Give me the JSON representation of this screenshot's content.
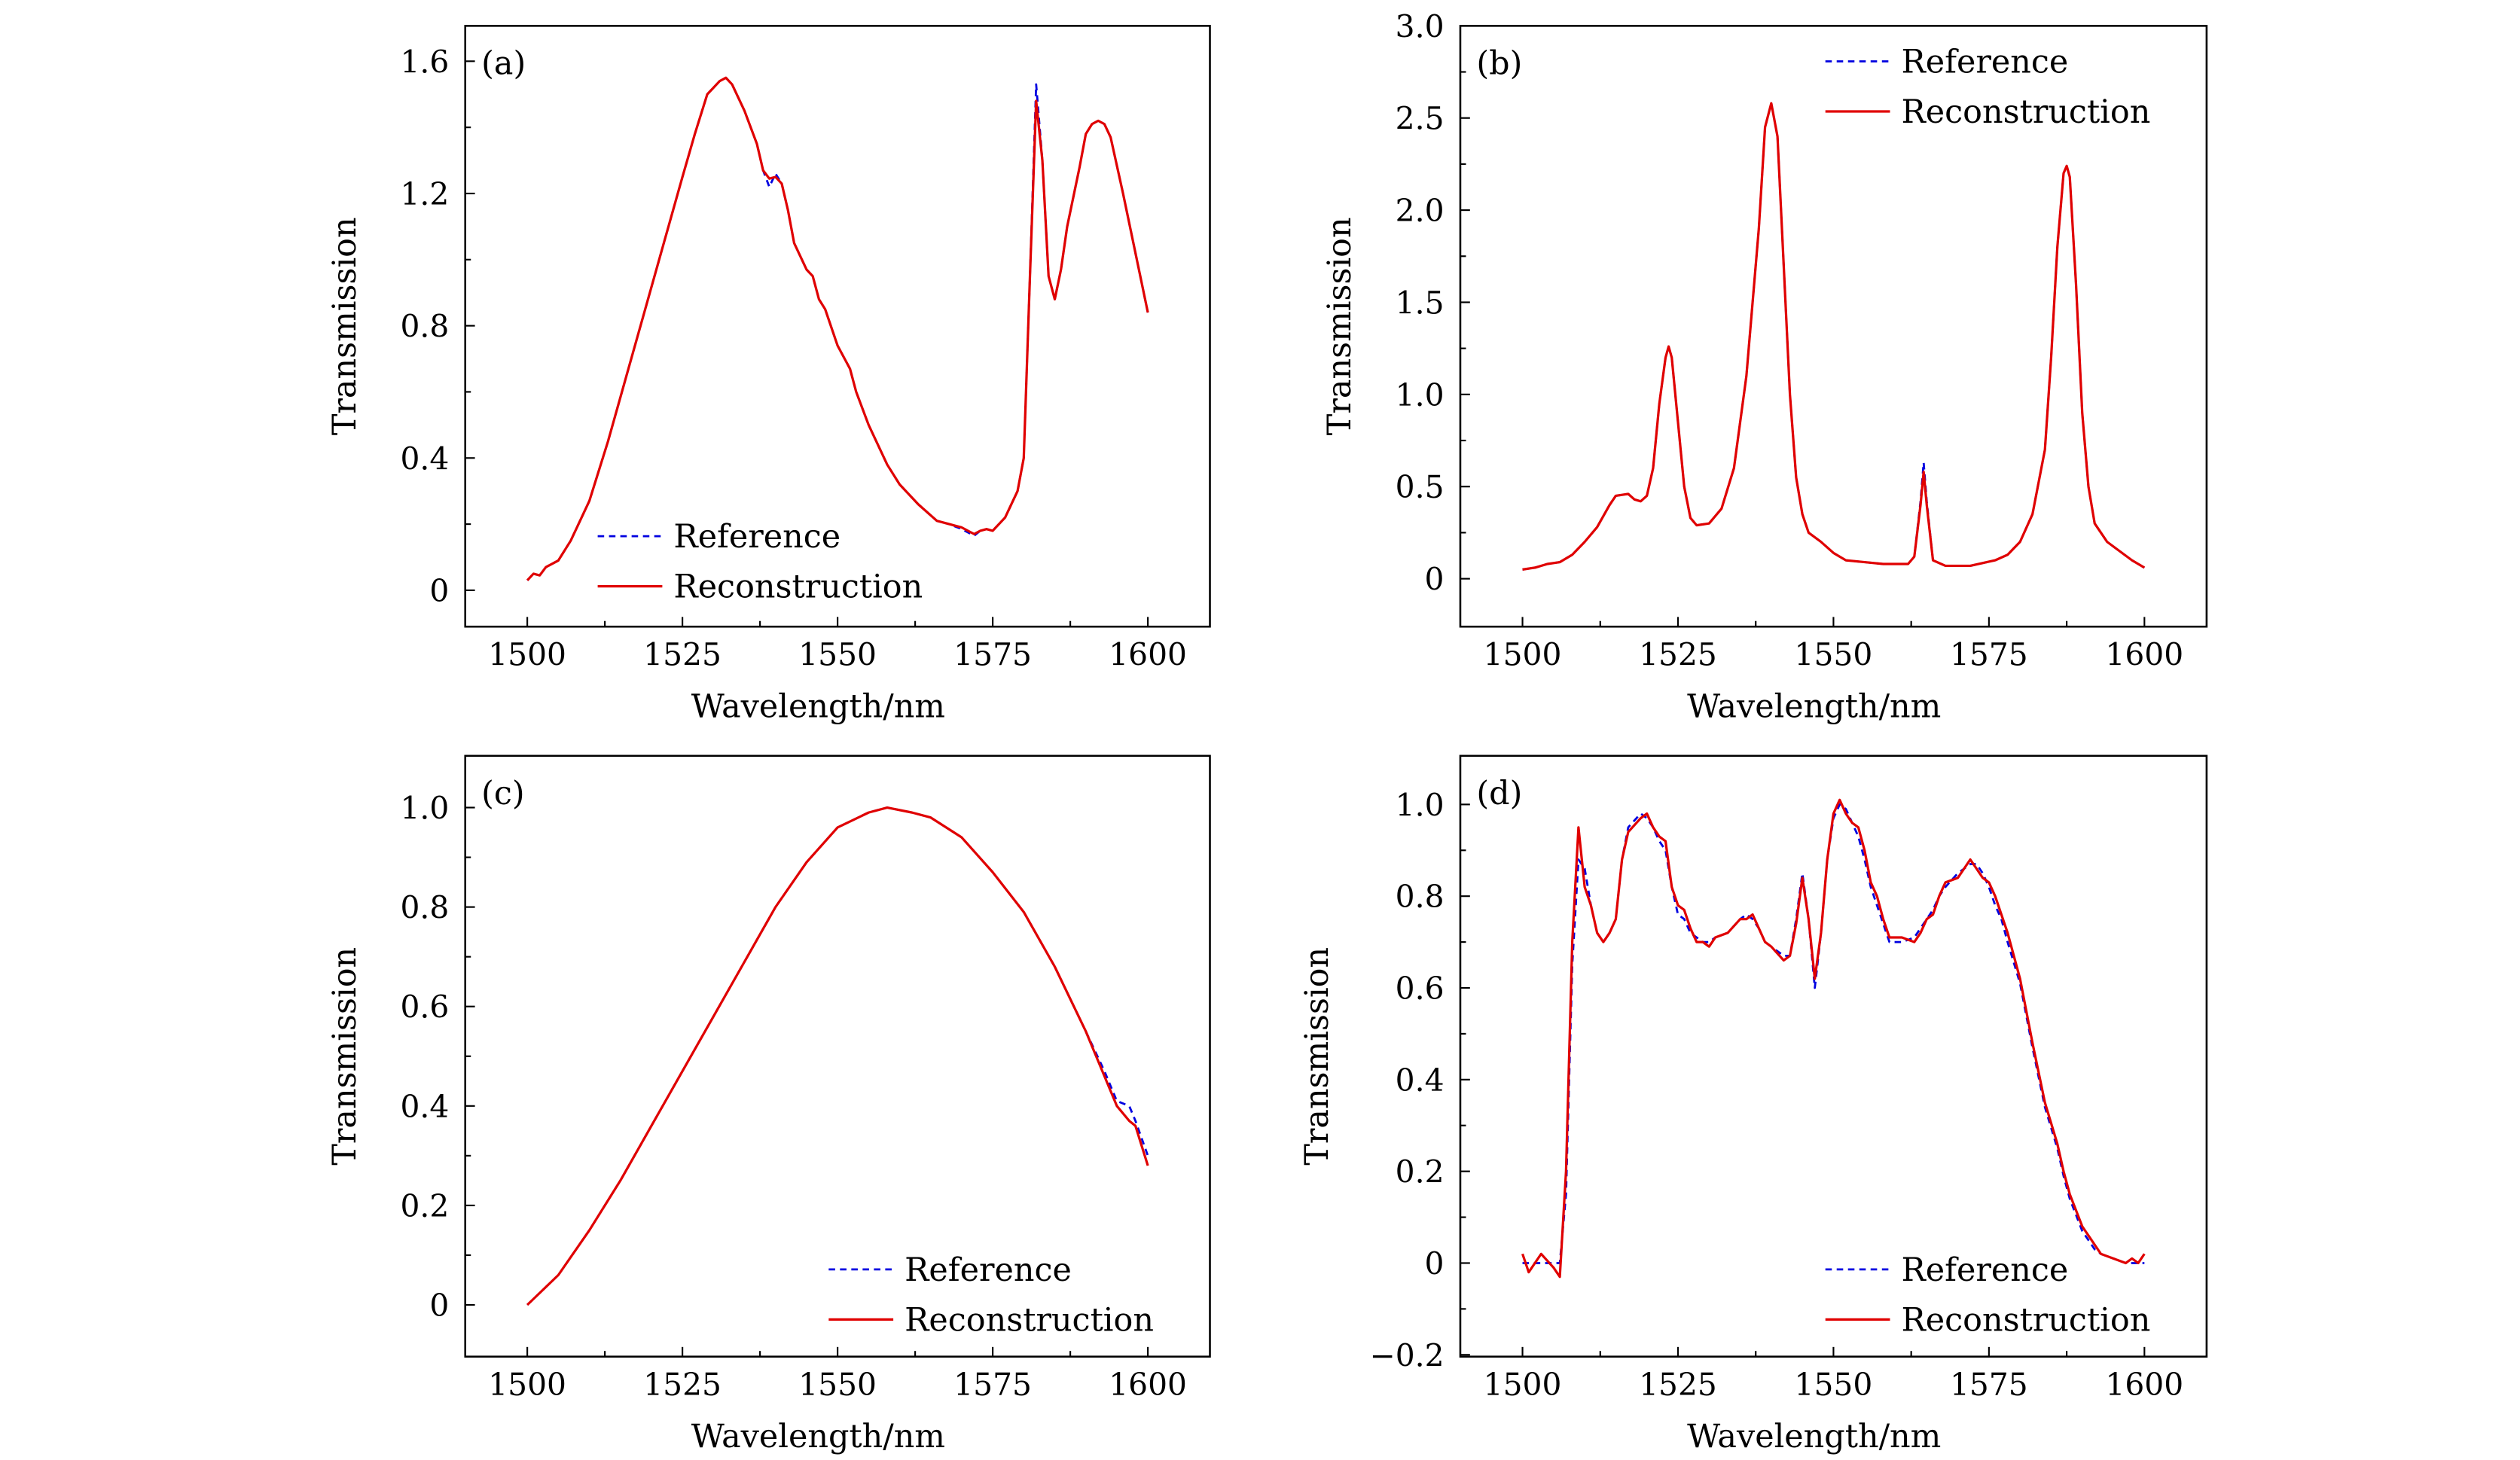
{
  "colors": {
    "reference": "#0000e0",
    "reconstruction": "#e00000",
    "axes": "#000000"
  },
  "chart_data": [
    {
      "type": "line",
      "panel_label": "(a)",
      "xlabel": "Wavelength/nm",
      "ylabel": "Transmission",
      "xlim": [
        1490,
        1610
      ],
      "ylim": [
        -0.11,
        1.707
      ],
      "xticks": [
        1500,
        1525,
        1550,
        1575,
        1600
      ],
      "xtick_labels": [
        "1500",
        "1525",
        "1550",
        "1575",
        "1600"
      ],
      "yticks": [
        0,
        0.4,
        0.8,
        1.2,
        1.6
      ],
      "ytick_labels": [
        "0",
        "0.4",
        "0.8",
        "1.2",
        "1.6"
      ],
      "yminor": 0.2,
      "legend": {
        "placement": "bottom-left",
        "entries": [
          "Reference",
          "Reconstruction"
        ]
      },
      "x": [
        1500,
        1501,
        1502,
        1503,
        1505,
        1507,
        1510,
        1513,
        1516,
        1519,
        1522,
        1525,
        1527,
        1529,
        1530,
        1531,
        1532,
        1533,
        1535,
        1537,
        1538,
        1539,
        1540,
        1541,
        1542,
        1543,
        1545,
        1546,
        1547,
        1548,
        1550,
        1552,
        1553,
        1555,
        1558,
        1560,
        1563,
        1566,
        1568,
        1570,
        1572,
        1573,
        1574,
        1575,
        1577,
        1579,
        1580,
        1581,
        1582,
        1583,
        1584,
        1585,
        1586,
        1587,
        1589,
        1590,
        1591,
        1592,
        1593,
        1594,
        1596,
        1598,
        1600
      ],
      "series": [
        {
          "name": "Reference",
          "values": [
            0.03,
            0.05,
            0.045,
            0.07,
            0.09,
            0.15,
            0.27,
            0.45,
            0.65,
            0.85,
            1.05,
            1.25,
            1.38,
            1.5,
            1.52,
            1.54,
            1.55,
            1.53,
            1.45,
            1.35,
            1.27,
            1.22,
            1.26,
            1.23,
            1.15,
            1.05,
            0.97,
            0.95,
            0.88,
            0.85,
            0.74,
            0.67,
            0.6,
            0.5,
            0.38,
            0.32,
            0.26,
            0.21,
            0.2,
            0.185,
            0.165,
            0.18,
            0.185,
            0.18,
            0.22,
            0.3,
            0.4,
            0.95,
            1.53,
            1.3,
            0.95,
            0.88,
            0.97,
            1.1,
            1.28,
            1.38,
            1.41,
            1.42,
            1.41,
            1.37,
            1.2,
            1.02,
            0.84
          ]
        },
        {
          "name": "Reconstruction",
          "values": [
            0.03,
            0.05,
            0.045,
            0.07,
            0.09,
            0.15,
            0.27,
            0.45,
            0.65,
            0.85,
            1.05,
            1.25,
            1.38,
            1.5,
            1.52,
            1.54,
            1.55,
            1.53,
            1.45,
            1.35,
            1.27,
            1.245,
            1.25,
            1.23,
            1.15,
            1.05,
            0.97,
            0.95,
            0.88,
            0.85,
            0.74,
            0.67,
            0.6,
            0.5,
            0.38,
            0.32,
            0.26,
            0.21,
            0.2,
            0.19,
            0.17,
            0.18,
            0.185,
            0.18,
            0.22,
            0.3,
            0.4,
            0.95,
            1.48,
            1.3,
            0.95,
            0.88,
            0.97,
            1.1,
            1.28,
            1.38,
            1.41,
            1.42,
            1.41,
            1.37,
            1.2,
            1.02,
            0.84
          ]
        }
      ]
    },
    {
      "type": "line",
      "panel_label": "(b)",
      "xlabel": "Wavelength/nm",
      "ylabel": "Transmission",
      "xlim": [
        1490,
        1610
      ],
      "ylim": [
        -0.26,
        3.0
      ],
      "xticks": [
        1500,
        1525,
        1550,
        1575,
        1600
      ],
      "xtick_labels": [
        "1500",
        "1525",
        "1550",
        "1575",
        "1600"
      ],
      "yticks": [
        0,
        0.5,
        1.0,
        1.5,
        2.0,
        2.5,
        3.0
      ],
      "ytick_labels": [
        "0",
        "0.5",
        "1.0",
        "1.5",
        "2.0",
        "2.5",
        "3.0"
      ],
      "yminor": 0.25,
      "legend": {
        "placement": "top-right",
        "entries": [
          "Reference",
          "Reconstruction"
        ]
      },
      "x": [
        1500,
        1502,
        1504,
        1506,
        1508,
        1510,
        1512,
        1514,
        1515,
        1517,
        1518,
        1519,
        1520,
        1521,
        1522,
        1523,
        1523.5,
        1524,
        1525,
        1526,
        1527,
        1528,
        1530,
        1532,
        1534,
        1536,
        1538,
        1539,
        1540,
        1541,
        1542,
        1543,
        1544,
        1545,
        1546,
        1548,
        1550,
        1552,
        1555,
        1558,
        1562,
        1563,
        1564,
        1564.5,
        1565,
        1566,
        1568,
        1572,
        1576,
        1578,
        1580,
        1582,
        1584,
        1585,
        1586,
        1587,
        1587.5,
        1588,
        1589,
        1590,
        1591,
        1592,
        1594,
        1596,
        1598,
        1600
      ],
      "series": [
        {
          "name": "Reference",
          "values": [
            0.05,
            0.06,
            0.08,
            0.09,
            0.13,
            0.2,
            0.28,
            0.4,
            0.45,
            0.46,
            0.43,
            0.42,
            0.45,
            0.6,
            0.95,
            1.2,
            1.26,
            1.2,
            0.85,
            0.5,
            0.33,
            0.29,
            0.3,
            0.38,
            0.6,
            1.1,
            1.9,
            2.45,
            2.58,
            2.4,
            1.7,
            1.0,
            0.55,
            0.35,
            0.25,
            0.2,
            0.14,
            0.1,
            0.09,
            0.08,
            0.08,
            0.12,
            0.42,
            0.63,
            0.42,
            0.1,
            0.07,
            0.07,
            0.1,
            0.13,
            0.2,
            0.35,
            0.7,
            1.2,
            1.8,
            2.2,
            2.24,
            2.18,
            1.6,
            0.9,
            0.5,
            0.3,
            0.2,
            0.15,
            0.1,
            0.06
          ]
        },
        {
          "name": "Reconstruction",
          "values": [
            0.05,
            0.06,
            0.08,
            0.09,
            0.13,
            0.2,
            0.28,
            0.4,
            0.45,
            0.46,
            0.43,
            0.42,
            0.45,
            0.6,
            0.95,
            1.2,
            1.26,
            1.2,
            0.85,
            0.5,
            0.33,
            0.29,
            0.3,
            0.38,
            0.6,
            1.1,
            1.9,
            2.45,
            2.58,
            2.4,
            1.7,
            1.0,
            0.55,
            0.35,
            0.25,
            0.2,
            0.14,
            0.1,
            0.09,
            0.08,
            0.08,
            0.12,
            0.4,
            0.58,
            0.4,
            0.1,
            0.07,
            0.07,
            0.1,
            0.13,
            0.2,
            0.35,
            0.7,
            1.2,
            1.8,
            2.2,
            2.24,
            2.18,
            1.6,
            0.9,
            0.5,
            0.3,
            0.2,
            0.15,
            0.1,
            0.06
          ]
        }
      ]
    },
    {
      "type": "line",
      "panel_label": "(c)",
      "xlabel": "Wavelength/nm",
      "ylabel": "Transmission",
      "xlim": [
        1490,
        1610
      ],
      "ylim": [
        -0.104,
        1.104
      ],
      "xticks": [
        1500,
        1525,
        1550,
        1575,
        1600
      ],
      "xtick_labels": [
        "1500",
        "1525",
        "1550",
        "1575",
        "1600"
      ],
      "yticks": [
        0,
        0.2,
        0.4,
        0.6,
        0.8,
        1.0
      ],
      "ytick_labels": [
        "0",
        "0.2",
        "0.4",
        "0.6",
        "0.8",
        "1.0"
      ],
      "yminor": 0.1,
      "legend": {
        "placement": "bottom-right",
        "entries": [
          "Reference",
          "Reconstruction"
        ]
      },
      "x": [
        1500,
        1505,
        1510,
        1515,
        1520,
        1525,
        1530,
        1535,
        1540,
        1545,
        1550,
        1555,
        1558,
        1562,
        1565,
        1570,
        1575,
        1580,
        1585,
        1590,
        1593,
        1595,
        1597,
        1598,
        1600
      ],
      "series": [
        {
          "name": "Reference",
          "values": [
            0,
            0.06,
            0.15,
            0.25,
            0.36,
            0.47,
            0.58,
            0.69,
            0.8,
            0.89,
            0.96,
            0.99,
            1.0,
            0.99,
            0.98,
            0.94,
            0.87,
            0.79,
            0.68,
            0.55,
            0.47,
            0.41,
            0.4,
            0.37,
            0.3
          ]
        },
        {
          "name": "Reconstruction",
          "values": [
            0,
            0.06,
            0.15,
            0.25,
            0.36,
            0.47,
            0.58,
            0.69,
            0.8,
            0.89,
            0.96,
            0.99,
            1.0,
            0.99,
            0.98,
            0.94,
            0.87,
            0.79,
            0.68,
            0.55,
            0.46,
            0.4,
            0.37,
            0.36,
            0.28
          ]
        }
      ]
    },
    {
      "type": "line",
      "panel_label": "(d)",
      "xlabel": "Wavelength/nm",
      "ylabel": "Transmission",
      "xlim": [
        1490,
        1610
      ],
      "ylim": [
        -0.204,
        1.106
      ],
      "xticks": [
        1500,
        1525,
        1550,
        1575,
        1600
      ],
      "xtick_labels": [
        "1500",
        "1525",
        "1550",
        "1575",
        "1600"
      ],
      "yticks": [
        -0.2,
        0,
        0.2,
        0.4,
        0.6,
        0.8,
        1.0
      ],
      "ytick_labels": [
        "−0.2",
        "0",
        "0.2",
        "0.4",
        "0.6",
        "0.8",
        "1.0"
      ],
      "yminor": 0.1,
      "legend": {
        "placement": "bottom-right",
        "entries": [
          "Reference",
          "Reconstruction"
        ]
      },
      "x": [
        1500,
        1501,
        1503,
        1505,
        1506,
        1507,
        1508,
        1509,
        1510,
        1511,
        1512,
        1513,
        1514,
        1515,
        1516,
        1517,
        1519,
        1520,
        1521,
        1522,
        1523,
        1524,
        1525,
        1526,
        1527,
        1528,
        1529,
        1530,
        1531,
        1533,
        1535,
        1536,
        1537,
        1538,
        1539,
        1540,
        1542,
        1543,
        1544,
        1545,
        1546,
        1547,
        1548,
        1549,
        1550,
        1551,
        1552,
        1553,
        1554,
        1555,
        1556,
        1557,
        1558,
        1559,
        1561,
        1563,
        1564,
        1565,
        1566,
        1567,
        1568,
        1570,
        1572,
        1573,
        1574,
        1575,
        1576,
        1577,
        1578,
        1580,
        1581,
        1582,
        1584,
        1586,
        1587,
        1588,
        1590,
        1591,
        1592,
        1593,
        1595,
        1597,
        1598,
        1599,
        1600
      ],
      "series": [
        {
          "name": "Reference",
          "values": [
            0,
            0,
            0,
            0,
            0,
            0.15,
            0.65,
            0.88,
            0.86,
            0.78,
            0.72,
            0.7,
            0.72,
            0.75,
            0.88,
            0.95,
            0.98,
            0.97,
            0.95,
            0.92,
            0.9,
            0.82,
            0.76,
            0.75,
            0.72,
            0.71,
            0.7,
            0.7,
            0.71,
            0.72,
            0.75,
            0.76,
            0.75,
            0.73,
            0.7,
            0.69,
            0.67,
            0.67,
            0.75,
            0.85,
            0.75,
            0.6,
            0.72,
            0.88,
            0.97,
            1.0,
            0.99,
            0.96,
            0.93,
            0.88,
            0.82,
            0.78,
            0.74,
            0.7,
            0.7,
            0.71,
            0.73,
            0.75,
            0.77,
            0.8,
            0.82,
            0.85,
            0.87,
            0.87,
            0.85,
            0.82,
            0.78,
            0.75,
            0.7,
            0.61,
            0.54,
            0.47,
            0.34,
            0.25,
            0.19,
            0.14,
            0.07,
            0.05,
            0.03,
            0.02,
            0.01,
            0.0,
            0.0,
            0.0,
            0.0
          ]
        },
        {
          "name": "Reconstruction",
          "values": [
            0.02,
            -0.02,
            0.02,
            -0.01,
            -0.03,
            0.2,
            0.7,
            0.95,
            0.82,
            0.78,
            0.72,
            0.7,
            0.72,
            0.75,
            0.88,
            0.94,
            0.97,
            0.98,
            0.95,
            0.93,
            0.92,
            0.82,
            0.78,
            0.77,
            0.73,
            0.7,
            0.7,
            0.69,
            0.71,
            0.72,
            0.75,
            0.75,
            0.76,
            0.73,
            0.7,
            0.69,
            0.66,
            0.67,
            0.74,
            0.84,
            0.75,
            0.62,
            0.72,
            0.88,
            0.98,
            1.01,
            0.98,
            0.96,
            0.95,
            0.9,
            0.83,
            0.8,
            0.75,
            0.71,
            0.71,
            0.7,
            0.72,
            0.75,
            0.76,
            0.8,
            0.83,
            0.84,
            0.88,
            0.86,
            0.84,
            0.83,
            0.8,
            0.76,
            0.72,
            0.62,
            0.55,
            0.48,
            0.35,
            0.26,
            0.2,
            0.15,
            0.08,
            0.06,
            0.04,
            0.02,
            0.01,
            0.0,
            0.01,
            0.0,
            0.02
          ]
        }
      ]
    }
  ]
}
